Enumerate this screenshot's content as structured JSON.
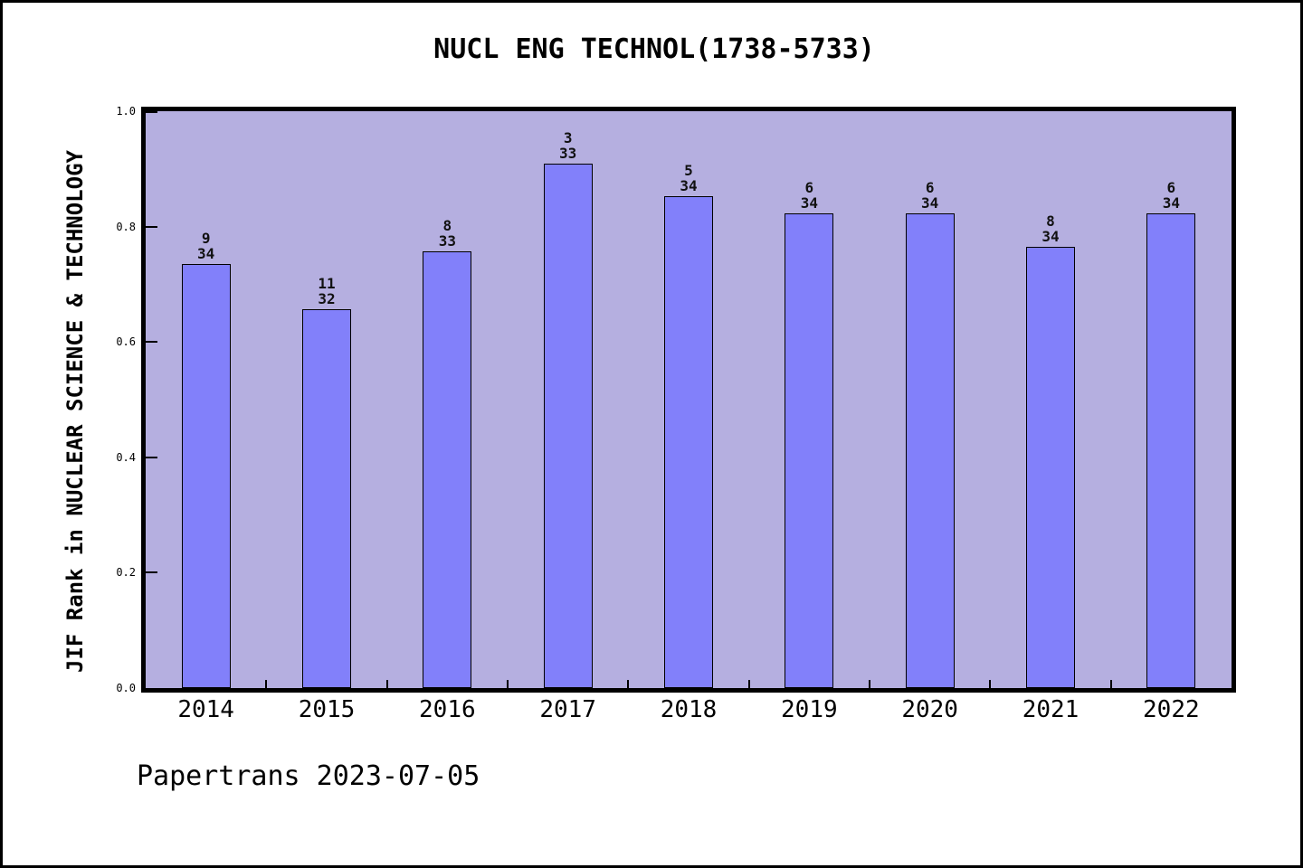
{
  "chart_data": {
    "type": "bar",
    "title": "NUCL ENG TECHNOL(1738-5733)",
    "ylabel": "JIF Rank in NUCLEAR SCIENCE & TECHNOLOGY",
    "xlabel": "",
    "categories": [
      "2014",
      "2015",
      "2016",
      "2017",
      "2018",
      "2019",
      "2020",
      "2021",
      "2022"
    ],
    "bars": [
      {
        "year": "2014",
        "rank": 9,
        "total": 34,
        "value": 0.7353
      },
      {
        "year": "2015",
        "rank": 11,
        "total": 32,
        "value": 0.6563
      },
      {
        "year": "2016",
        "rank": 8,
        "total": 33,
        "value": 0.7576
      },
      {
        "year": "2017",
        "rank": 3,
        "total": 33,
        "value": 0.9091
      },
      {
        "year": "2018",
        "rank": 5,
        "total": 34,
        "value": 0.8529
      },
      {
        "year": "2019",
        "rank": 6,
        "total": 34,
        "value": 0.8235
      },
      {
        "year": "2020",
        "rank": 6,
        "total": 34,
        "value": 0.8235
      },
      {
        "year": "2021",
        "rank": 8,
        "total": 34,
        "value": 0.7647
      },
      {
        "year": "2022",
        "rank": 6,
        "total": 34,
        "value": 0.8235
      }
    ],
    "yticks": [
      "0.0",
      "0.2",
      "0.4",
      "0.6",
      "0.8",
      "1.0"
    ],
    "ylim": [
      0,
      1
    ],
    "grid": "off",
    "legend": "none",
    "colors": {
      "bar_fill": "#8280fa",
      "bar_border": "#000000",
      "plot_bg": "#b5afe0",
      "axis": "#000000",
      "text": "#111111"
    }
  },
  "footer": {
    "text": "Papertrans 2023-07-05"
  }
}
